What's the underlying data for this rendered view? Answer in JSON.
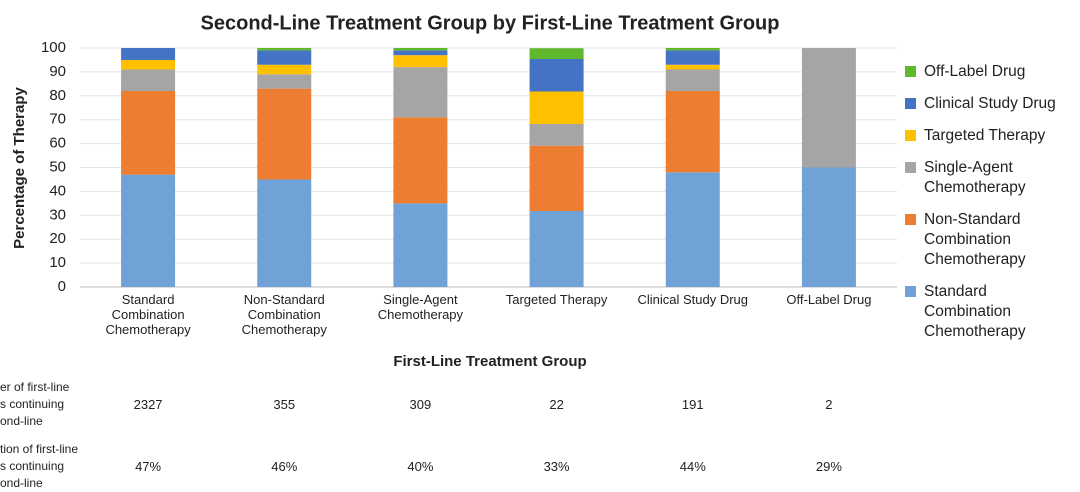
{
  "chart_data": {
    "type": "stacked_bar",
    "title": "Second-Line Treatment Group by First-Line Treatment Group",
    "x_label": "First-Line Treatment Group",
    "y_label": "Percentage of Therapy",
    "categories": [
      "Standard Combination Chemotherapy",
      "Non-Standard Combination Chemotherapy",
      "Single-Agent Chemotherapy",
      "Targeted Therapy",
      "Clinical Study Drug",
      "Off-Label Drug"
    ],
    "series": [
      {
        "name": "Standard Combination Chemotherapy",
        "color": "#70a1d7",
        "values": [
          47,
          45,
          35,
          31.8,
          48,
          50
        ]
      },
      {
        "name": "Non-Standard Combination Chemotherapy",
        "color": "#ed7d31",
        "values": [
          35,
          38,
          36,
          27.3,
          34,
          0
        ]
      },
      {
        "name": "Single-Agent Chemotherapy",
        "color": "#a5a5a5",
        "values": [
          9,
          6,
          21,
          9.1,
          9,
          50
        ]
      },
      {
        "name": "Targeted Therapy",
        "color": "#ffc000",
        "values": [
          4,
          4,
          5,
          13.6,
          2,
          0
        ]
      },
      {
        "name": "Clinical Study Drug",
        "color": "#4472c4",
        "values": [
          5,
          6,
          2,
          13.6,
          6,
          0
        ]
      },
      {
        "name": "Off-Label Drug",
        "color": "#5fb82e",
        "values": [
          0,
          1,
          1,
          4.5,
          1,
          0
        ]
      }
    ],
    "ylim": [
      0,
      100
    ],
    "yticks": [
      0,
      10,
      20,
      30,
      40,
      50,
      60,
      70,
      80,
      90,
      100
    ],
    "grid": true,
    "legend": "right"
  },
  "table": {
    "rows": [
      {
        "label": [
          "er of first-line",
          "s continuing",
          "ond-line"
        ],
        "values": [
          "2327",
          "355",
          "309",
          "22",
          "191",
          "2"
        ]
      },
      {
        "label": [
          "tion of first-line",
          "s continuing",
          "ond-line"
        ],
        "values": [
          "47%",
          "46%",
          "40%",
          "33%",
          "44%",
          "29%"
        ]
      }
    ]
  }
}
